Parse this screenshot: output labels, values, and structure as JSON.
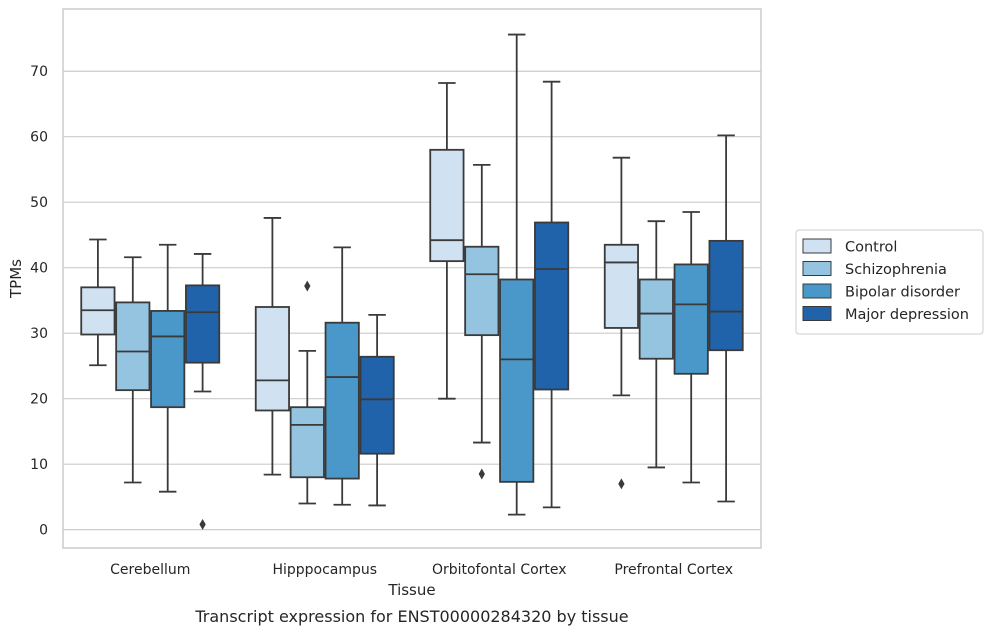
{
  "chart_data": {
    "type": "box",
    "caption": "Transcript expression for ENST00000284320 by tissue",
    "xlabel": "Tissue",
    "ylabel": "TPMs",
    "ylim": [
      -2.8,
      79.5
    ],
    "yticks": [
      0,
      10,
      20,
      30,
      40,
      50,
      60,
      70
    ],
    "grid": true,
    "legend_position": "right",
    "categories": [
      "Cerebellum",
      "Hipppocampus",
      "Orbitofontal Cortex",
      "Prefrontal Cortex"
    ],
    "series": [
      {
        "name": "Control",
        "color": "#d0e1f2",
        "boxes": [
          {
            "whisker_low": 25.1,
            "q1": 29.8,
            "median": 33.5,
            "q3": 37.0,
            "whisker_high": 44.3,
            "outliers": []
          },
          {
            "whisker_low": 8.4,
            "q1": 18.2,
            "median": 22.8,
            "q3": 34.0,
            "whisker_high": 47.6,
            "outliers": []
          },
          {
            "whisker_low": 20.0,
            "q1": 41.0,
            "median": 44.2,
            "q3": 58.0,
            "whisker_high": 68.2,
            "outliers": []
          },
          {
            "whisker_low": 20.5,
            "q1": 30.8,
            "median": 40.8,
            "q3": 43.5,
            "whisker_high": 56.8,
            "outliers": [
              7.0
            ]
          }
        ]
      },
      {
        "name": "Schizophrenia",
        "color": "#94c4df",
        "boxes": [
          {
            "whisker_low": 7.2,
            "q1": 21.3,
            "median": 27.2,
            "q3": 34.7,
            "whisker_high": 41.6,
            "outliers": []
          },
          {
            "whisker_low": 4.0,
            "q1": 8.0,
            "median": 16.0,
            "q3": 18.7,
            "whisker_high": 27.3,
            "outliers": [
              37.2
            ]
          },
          {
            "whisker_low": 13.3,
            "q1": 29.7,
            "median": 39.0,
            "q3": 43.2,
            "whisker_high": 55.7,
            "outliers": [
              8.5
            ]
          },
          {
            "whisker_low": 9.5,
            "q1": 26.1,
            "median": 33.0,
            "q3": 38.2,
            "whisker_high": 47.1,
            "outliers": []
          }
        ]
      },
      {
        "name": "Bipolar disorder",
        "color": "#4a98c9",
        "boxes": [
          {
            "whisker_low": 5.8,
            "q1": 18.7,
            "median": 29.5,
            "q3": 33.4,
            "whisker_high": 43.5,
            "outliers": []
          },
          {
            "whisker_low": 3.8,
            "q1": 7.8,
            "median": 23.3,
            "q3": 31.6,
            "whisker_high": 43.1,
            "outliers": []
          },
          {
            "whisker_low": 2.3,
            "q1": 7.3,
            "median": 26.0,
            "q3": 38.2,
            "whisker_high": 75.6,
            "outliers": []
          },
          {
            "whisker_low": 7.2,
            "q1": 23.8,
            "median": 34.4,
            "q3": 40.5,
            "whisker_high": 48.5,
            "outliers": []
          }
        ]
      },
      {
        "name": "Major depression",
        "color": "#2163aa",
        "boxes": [
          {
            "whisker_low": 21.1,
            "q1": 25.5,
            "median": 33.2,
            "q3": 37.3,
            "whisker_high": 42.1,
            "outliers": [
              0.8
            ]
          },
          {
            "whisker_low": 3.7,
            "q1": 11.6,
            "median": 19.9,
            "q3": 26.4,
            "whisker_high": 32.8,
            "outliers": []
          },
          {
            "whisker_low": 3.4,
            "q1": 21.4,
            "median": 39.8,
            "q3": 46.9,
            "whisker_high": 68.4,
            "outliers": []
          },
          {
            "whisker_low": 4.3,
            "q1": 27.4,
            "median": 33.3,
            "q3": 44.1,
            "whisker_high": 60.2,
            "outliers": []
          }
        ]
      }
    ]
  }
}
